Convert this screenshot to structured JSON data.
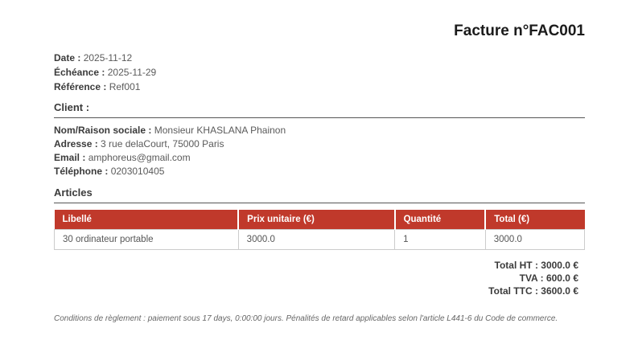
{
  "page": {
    "title": "Facture n°FAC001"
  },
  "meta": {
    "date_label": "Date :",
    "date_value": "2025-11-12",
    "due_label": "Échéance :",
    "due_value": "2025-11-29",
    "ref_label": "Référence :",
    "ref_value": "Ref001"
  },
  "client": {
    "section_title": "Client :",
    "name_label": "Nom/Raison sociale :",
    "name_value": "Monsieur KHASLANA Phainon",
    "address_label": "Adresse :",
    "address_value": "3 rue delaCourt, 75000 Paris",
    "email_label": "Email :",
    "email_value": "amphoreus@gmail.com",
    "phone_label": "Téléphone :",
    "phone_value": "0203010405"
  },
  "articles": {
    "section_title": "Articles",
    "headers": [
      "Libellé",
      "Prix unitaire (€)",
      "Quantité",
      "Total (€)"
    ],
    "rows": [
      {
        "libelle": "30 ordinateur portable",
        "prix_unitaire": "3000.0",
        "quantite": "1",
        "total": "3000.0"
      }
    ]
  },
  "totals": {
    "ht_label": "Total HT :",
    "ht_value": "3000.0 €",
    "tva_label": "TVA :",
    "tva_value": "600.0 €",
    "ttc_label": "Total TTC :",
    "ttc_value": "3600.0 €"
  },
  "footer": {
    "conditions": "Conditions de règlement : paiement sous 17 days, 0:00:00 jours. Pénalités de retard applicables selon l'article L441-6 du Code de commerce."
  },
  "colors": {
    "accent_red": "#c0392b",
    "header_text": "#ffffff",
    "table_border": "#cccccc"
  }
}
